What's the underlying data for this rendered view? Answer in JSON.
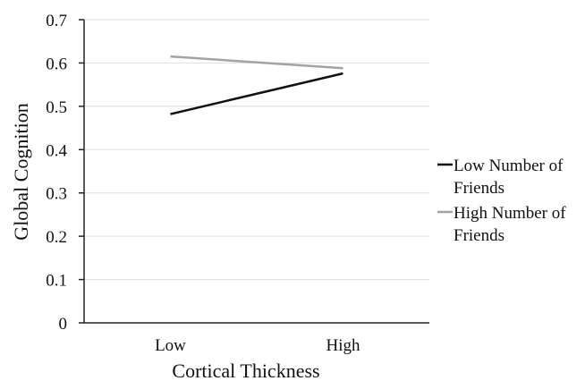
{
  "chart_data": {
    "type": "line",
    "title": "",
    "xlabel": "Cortical Thickness",
    "ylabel": "Global Cognition",
    "categories": [
      "Low",
      "High"
    ],
    "ylim": [
      0,
      0.7
    ],
    "yticks": [
      "0",
      "0.1",
      "0.2",
      "0.3",
      "0.4",
      "0.5",
      "0.6",
      "0.7"
    ],
    "grid": true,
    "legend_position": "right",
    "series": [
      {
        "name_line1": "Low Number of",
        "name_line2": "Friends",
        "values": [
          0.482,
          0.576
        ],
        "color": "#111111"
      },
      {
        "name_line1": "High Number of",
        "name_line2": "Friends",
        "values": [
          0.615,
          0.588
        ],
        "color": "#a3a3a3"
      }
    ]
  }
}
